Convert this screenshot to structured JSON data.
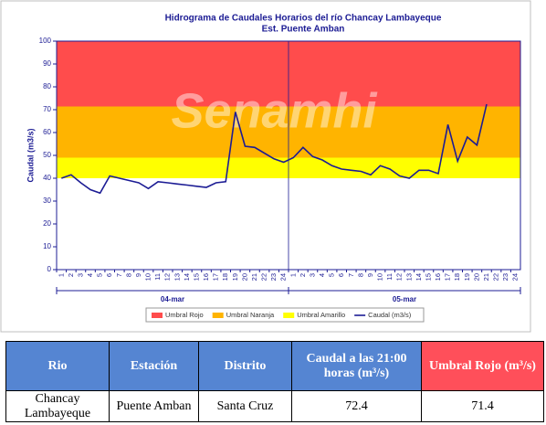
{
  "chart_data": {
    "type": "line",
    "title": "Hidrograma de Caudales Horarios del río Chancay Lambayeque",
    "subtitle": "Est. Puente Amban",
    "y_label": "Caudal  (m3/s)",
    "watermark": "Senamhi",
    "categories": [
      1,
      2,
      3,
      4,
      5,
      6,
      7,
      8,
      9,
      10,
      11,
      12,
      13,
      14,
      15,
      16,
      17,
      18,
      19,
      20,
      21,
      22,
      23,
      24,
      1,
      2,
      3,
      4,
      5,
      6,
      7,
      8,
      9,
      10,
      11,
      12,
      13,
      14,
      15,
      16,
      17,
      18,
      19,
      20,
      21,
      22,
      23,
      24
    ],
    "x_groups": [
      "04-mar",
      "05-mar"
    ],
    "series": [
      {
        "name": "Caudal (m3/s)",
        "color": "#1c1c94",
        "values": [
          40,
          41.5,
          38,
          35,
          33.5,
          41,
          40,
          39,
          38,
          35.5,
          38.5,
          38,
          37.5,
          37,
          36.5,
          36,
          38,
          38.5,
          69,
          54,
          53.5,
          51,
          48.5,
          47,
          49,
          53.5,
          49.5,
          48,
          45.5,
          44,
          43.5,
          43,
          41.5,
          45.5,
          44,
          41,
          40,
          43.5,
          43.5,
          42,
          63.5,
          47.5,
          58,
          54.5,
          72.4,
          null,
          null,
          null
        ]
      }
    ],
    "thresholds": [
      {
        "name": "Umbral Rojo",
        "color": "#ff4c4c",
        "value": 71.4
      },
      {
        "name": "Umbral Naranja",
        "color": "#ffb400",
        "value": 49
      },
      {
        "name": "Umbral Amarillo",
        "color": "#ffff00",
        "value": 40
      }
    ],
    "ylim": [
      0,
      100
    ],
    "yticks": [
      0,
      10,
      20,
      30,
      40,
      50,
      60,
      70,
      80,
      90,
      100
    ],
    "grid": false
  },
  "table": {
    "headers": [
      "Rio",
      "Estación",
      "Distrito",
      "Caudal a las 21:00 horas (m³/s)",
      "Umbral Rojo (m³/s)"
    ],
    "rows": [
      [
        "Chancay Lambayeque",
        "Puente Amban",
        "Santa Cruz",
        72.4,
        71.4
      ]
    ]
  }
}
